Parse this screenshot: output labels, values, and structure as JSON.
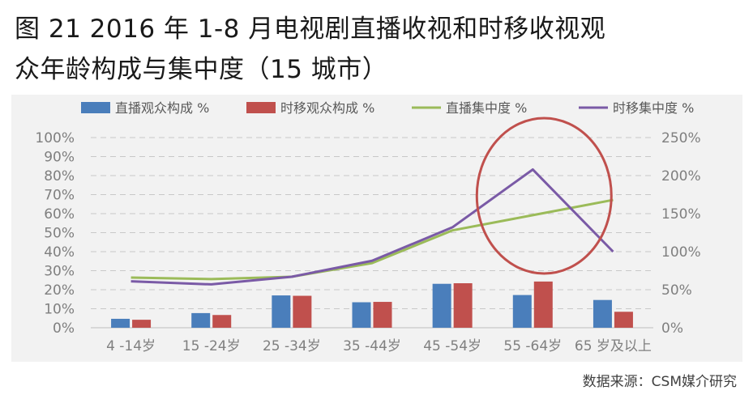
{
  "title_line1": "图 21  2016 年 1-8 月电视剧直播收视和时移收视观",
  "title_line2": "众年龄构成与集中度（15 城市）",
  "source": "数据来源：CSM媒介研究",
  "chart_data": {
    "type": "bar+line",
    "categories": [
      "4 -14岁",
      "15 -24岁",
      "25 -34岁",
      "35 -44岁",
      "45 -54岁",
      "55 -64岁",
      "65 岁及以上"
    ],
    "series": [
      {
        "name": "直播观众构成 %",
        "type": "bar",
        "axis": "left",
        "color": "#4a7ebb",
        "values": [
          4.7,
          7.7,
          17.0,
          13.4,
          23.1,
          17.2,
          14.6
        ]
      },
      {
        "name": "时移观众构成 %",
        "type": "bar",
        "axis": "left",
        "color": "#c0504d",
        "values": [
          4.2,
          6.7,
          16.8,
          13.6,
          23.4,
          24.3,
          8.4
        ]
      },
      {
        "name": "直播集中度 %",
        "type": "line",
        "axis": "right",
        "color": "#9bbb59",
        "values": [
          66,
          64,
          67,
          85,
          128,
          148,
          168
        ]
      },
      {
        "name": "时移集中度 %",
        "type": "line",
        "axis": "right",
        "color": "#7a5aa6",
        "values": [
          61,
          57,
          67,
          88,
          132,
          208,
          100
        ]
      }
    ],
    "left_axis": {
      "min": 0,
      "max": 100,
      "step": 10,
      "labels": [
        "0%",
        "10%",
        "20%",
        "30%",
        "40%",
        "50%",
        "60%",
        "70%",
        "80%",
        "90%",
        "100%"
      ]
    },
    "right_axis": {
      "min": 0,
      "max": 250,
      "step": 50,
      "labels": [
        "0%",
        "50%",
        "100%",
        "150%",
        "200%",
        "250%"
      ]
    },
    "grid": "dashed-horizontal",
    "legend": "top",
    "annotation": {
      "shape": "ellipse",
      "color": "#c0504d",
      "around_category": "55 -64岁"
    }
  }
}
